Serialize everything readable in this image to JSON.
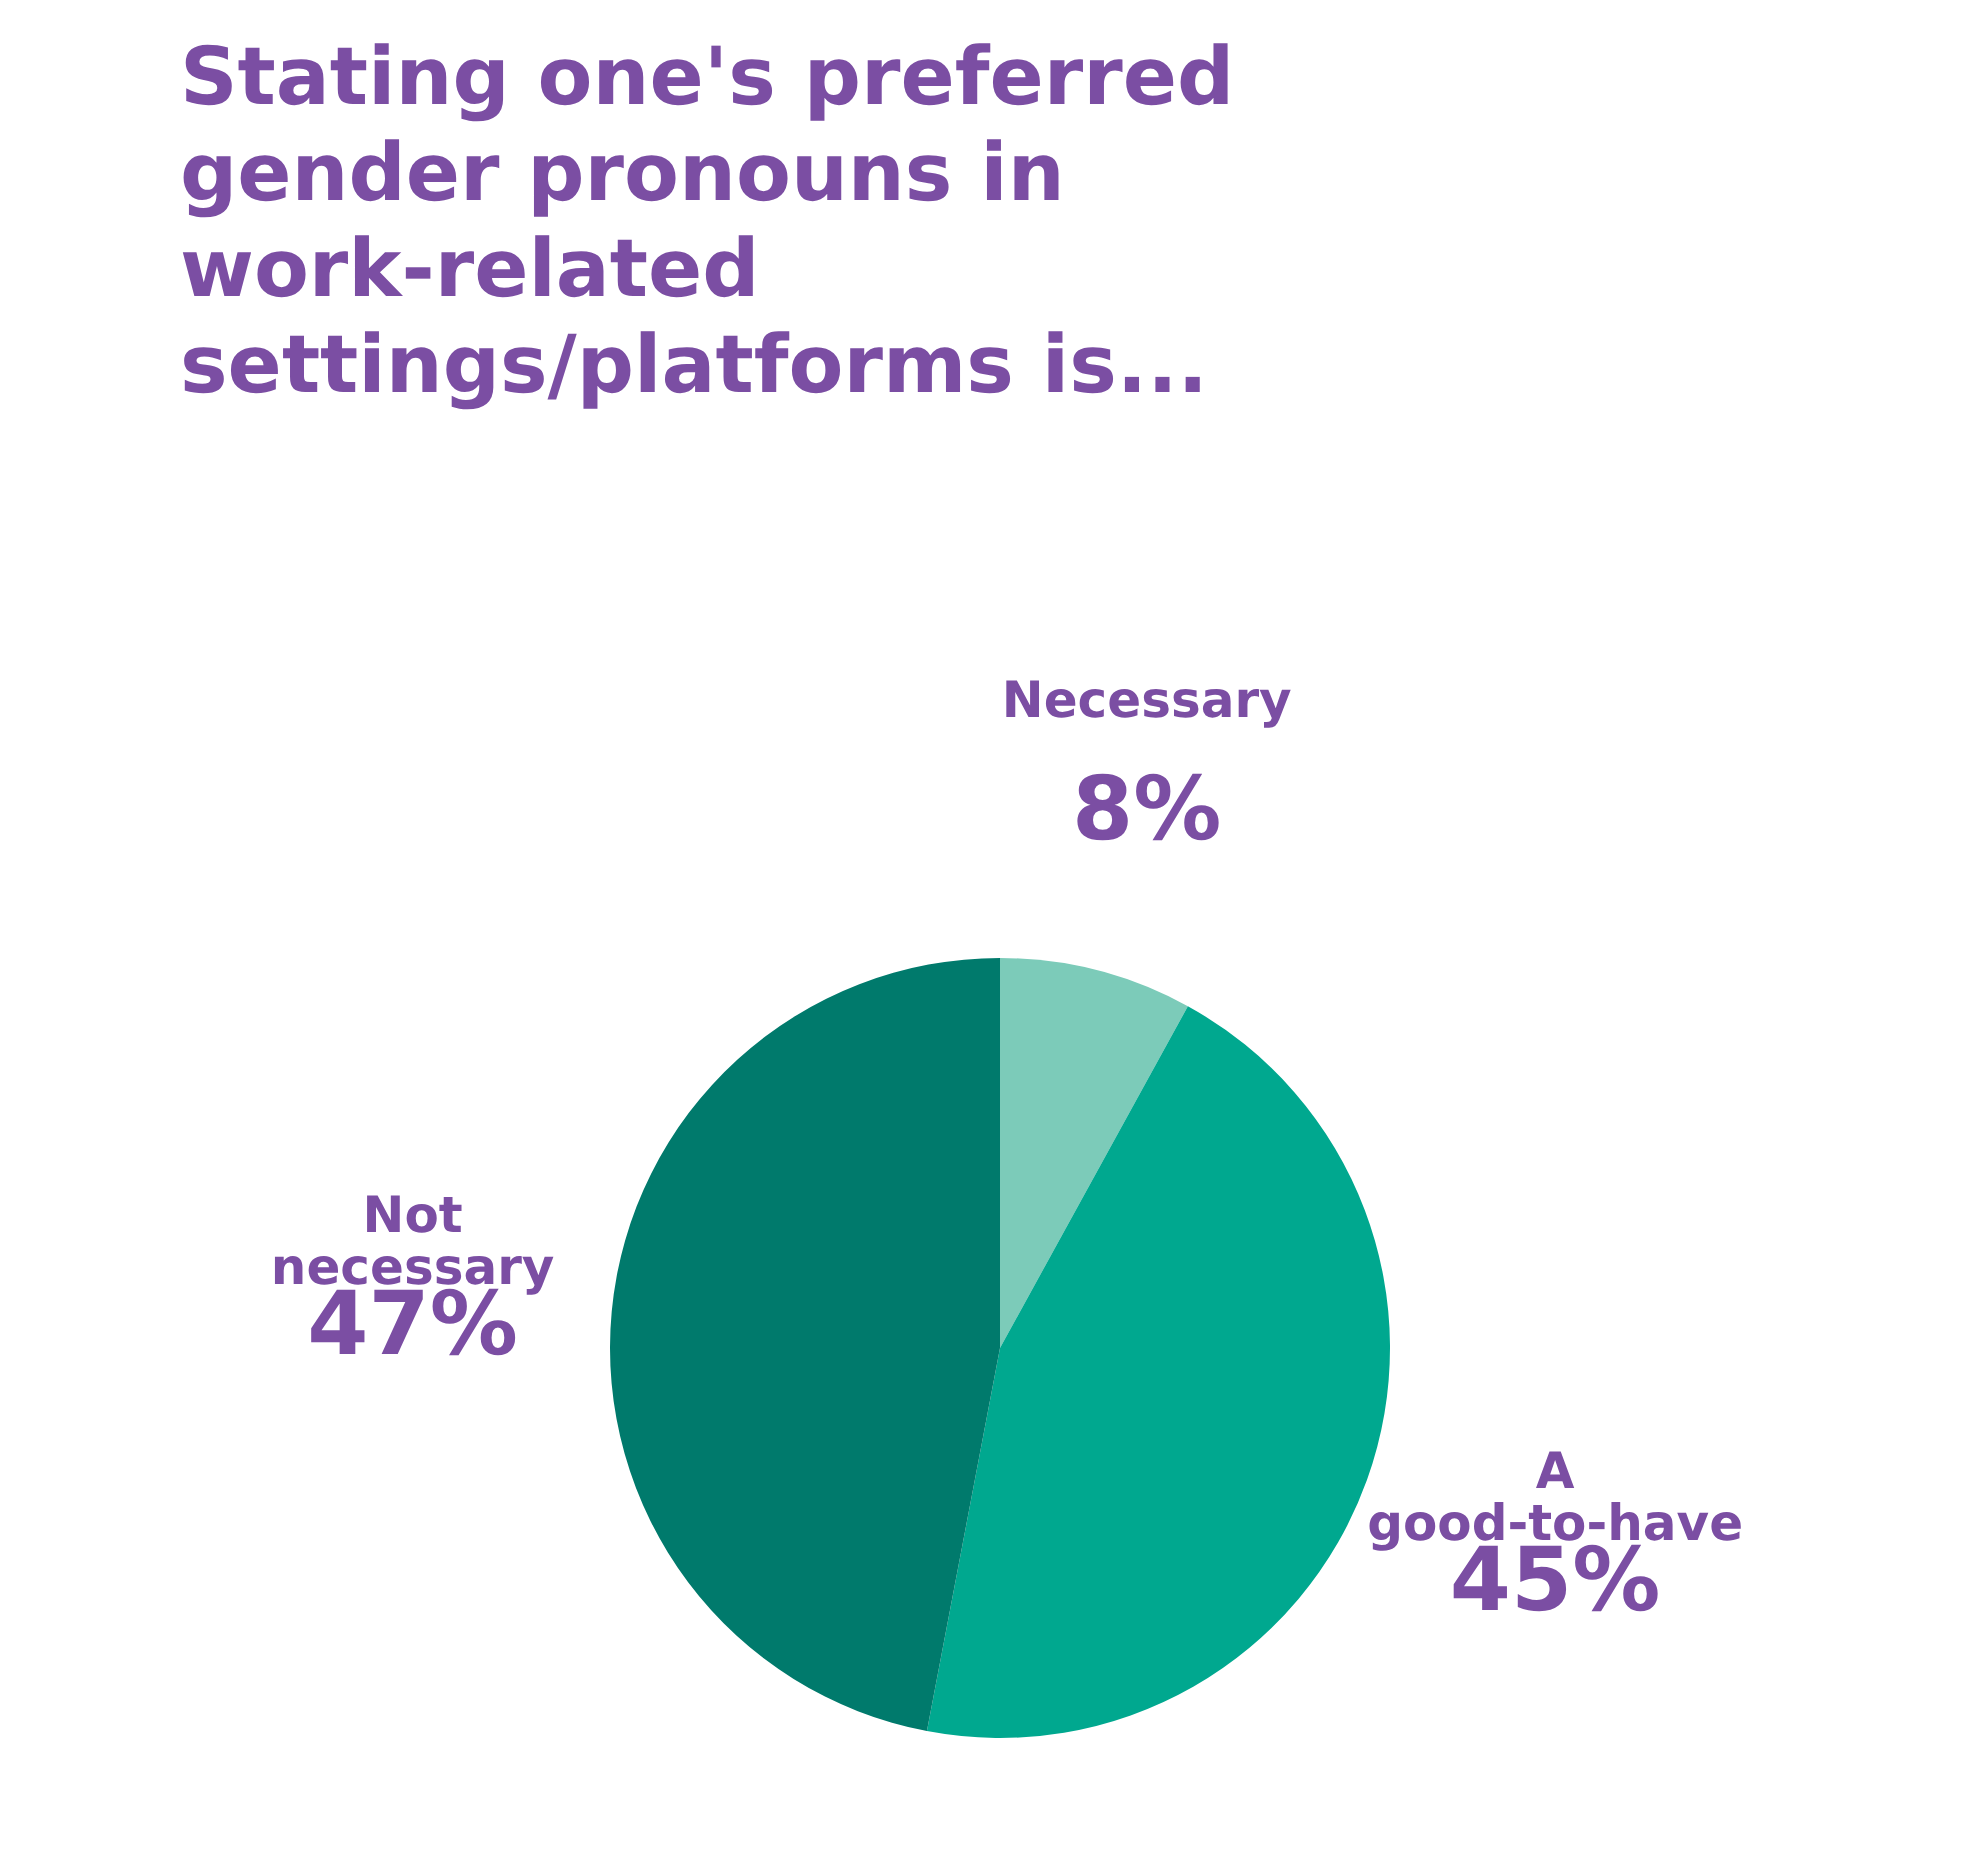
{
  "chart_data": {
    "type": "pie",
    "title": "Stating one's preferred gender pronouns in work-related settings/platforms is...",
    "categories": [
      "Necessary",
      "A good-to-have",
      "Not necessary"
    ],
    "values": [
      8,
      45,
      47
    ],
    "colors": [
      "#7ccbb9",
      "#00a88f",
      "#007a6c"
    ],
    "value_labels": [
      "8%",
      "45%",
      "47%"
    ]
  }
}
